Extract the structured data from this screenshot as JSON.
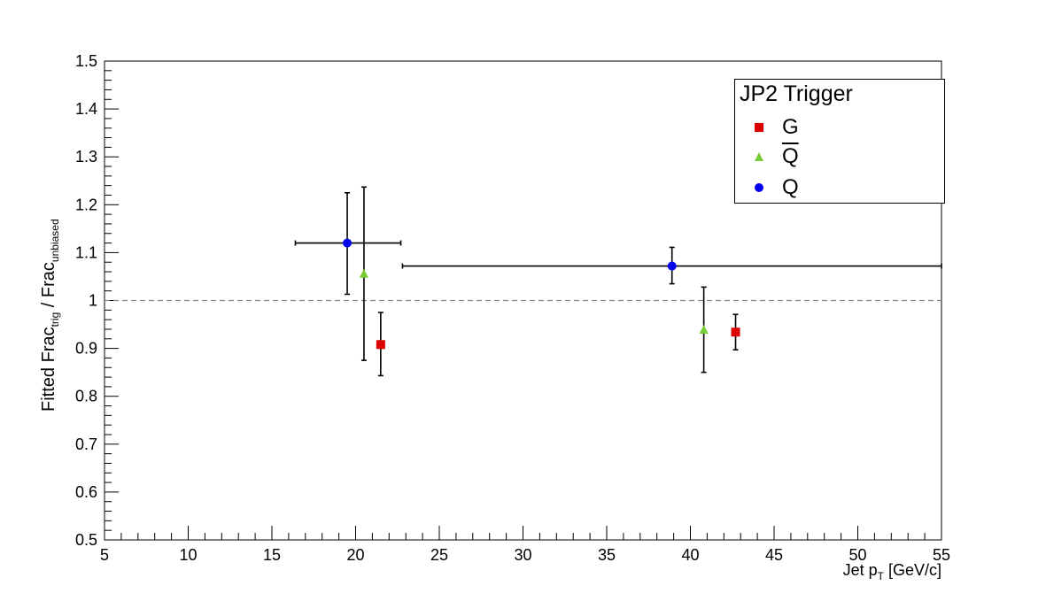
{
  "chart_data": {
    "type": "scatter",
    "xlabel_main": "Jet p",
    "xlabel_sub": "T",
    "xlabel_unit": "[GeV/c]",
    "ylabel_main": "Fitted Frac",
    "ylabel_sub1": "trig",
    "ylabel_sep": " / Frac",
    "ylabel_sub2": "unbiased",
    "xlim": [
      5,
      55
    ],
    "ylim": [
      0.5,
      1.5
    ],
    "x_ticks": [
      5,
      10,
      15,
      20,
      25,
      30,
      35,
      40,
      45,
      50,
      55
    ],
    "y_ticks": [
      0.5,
      0.6,
      0.7,
      0.8,
      0.9,
      1,
      1.1,
      1.2,
      1.3,
      1.4,
      1.5
    ],
    "reference_line": {
      "y": 1.0,
      "style": "dashed"
    },
    "legend": {
      "title": "JP2 Trigger",
      "placement": "top-right",
      "entries": [
        {
          "label": "G",
          "marker": "square",
          "color": "#dd0000"
        },
        {
          "label": "Q",
          "overline": true,
          "marker": "triangle",
          "color": "#77cc33"
        },
        {
          "label": "Q",
          "marker": "circle",
          "color": "#0000ee"
        }
      ]
    },
    "series": [
      {
        "name": "G",
        "marker": "square",
        "color": "#dd0000",
        "points": [
          {
            "x": 21.5,
            "y": 0.908,
            "yerr_low": 0.065,
            "yerr_high": 0.067
          },
          {
            "x": 42.7,
            "y": 0.934,
            "yerr_low": 0.037,
            "yerr_high": 0.037
          }
        ]
      },
      {
        "name": "Q-bar",
        "marker": "triangle",
        "color": "#77cc33",
        "points": [
          {
            "x": 20.5,
            "y": 1.055,
            "yerr_low": 0.18,
            "yerr_high": 0.182
          },
          {
            "x": 40.8,
            "y": 0.938,
            "yerr_low": 0.088,
            "yerr_high": 0.09
          }
        ]
      },
      {
        "name": "Q",
        "marker": "circle",
        "color": "#0000ee",
        "points": [
          {
            "x": 19.5,
            "y": 1.12,
            "yerr_low": 0.107,
            "yerr_high": 0.105,
            "xerr_low": 3.1,
            "xerr_high": 3.2
          },
          {
            "x": 38.9,
            "y": 1.072,
            "yerr_low": 0.037,
            "yerr_high": 0.039,
            "xerr_low": 16.1,
            "xerr_high": 16.1
          }
        ]
      }
    ]
  }
}
